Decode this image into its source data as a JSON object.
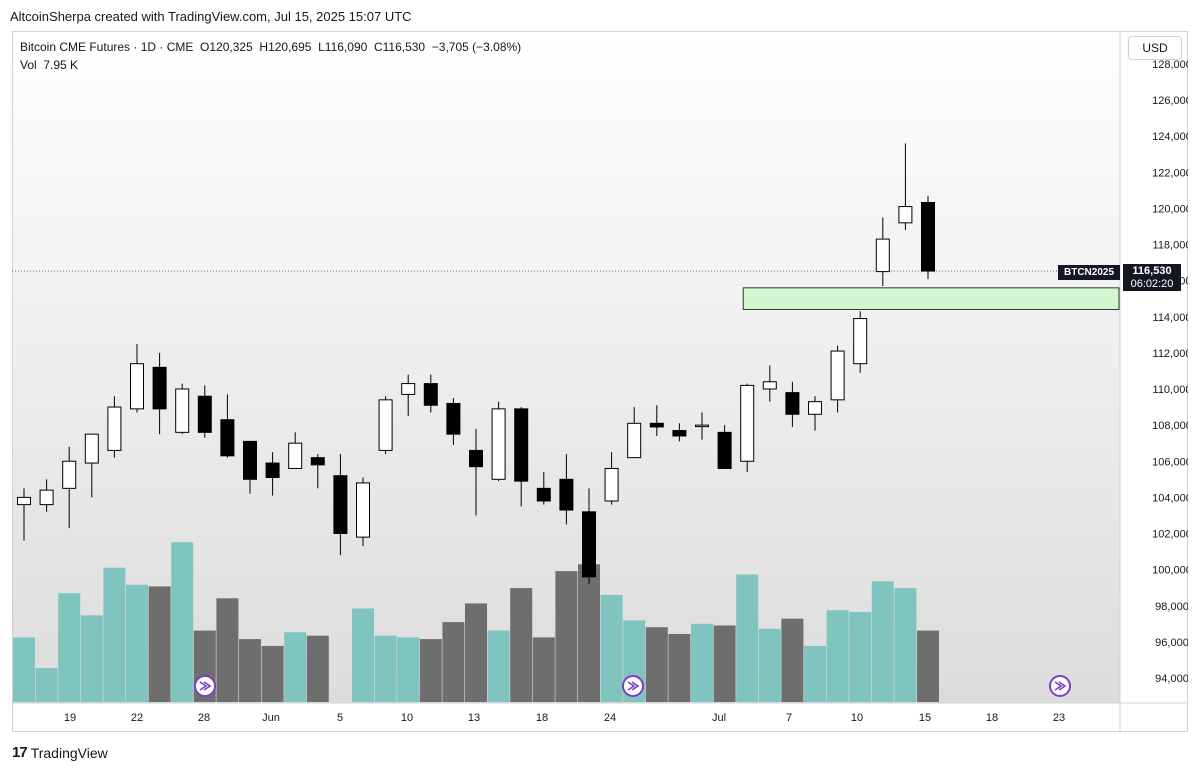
{
  "header": {
    "credit": "AltcoinSherpa created with TradingView.com, Jul 15, 2025 15:07 UTC"
  },
  "legend": {
    "line1": "Bitcoin CME Futures · 1D · CME  O120,325  H120,695  L116,090  C116,530  −3,705 (−3.08%)",
    "line2": "Vol  7.95 K"
  },
  "currency_button": "USD",
  "price_tag": {
    "price": "116,530",
    "countdown": "06:02:20"
  },
  "symbol_tag": "BTCN2025",
  "footer": {
    "brand": "TradingView",
    "logo_text": "17"
  },
  "colors": {
    "volume_up": "#80c4bf",
    "volume_down": "#6e6e6e",
    "zone_fill": "#d3f5d0",
    "zone_border": "#0a0a0a",
    "candle_up": "#ffffff",
    "candle_down": "#000000"
  },
  "chart_data": {
    "type": "candlestick",
    "y_axis": {
      "min": 93000,
      "max": 128000,
      "ticks": [
        "94,000",
        "96,000",
        "98,000",
        "100,000",
        "102,000",
        "104,000",
        "106,000",
        "108,000",
        "110,000",
        "112,000",
        "114,000",
        "116,000",
        "118,000",
        "120,000",
        "122,000",
        "124,000",
        "126,000",
        "128,000"
      ]
    },
    "x_axis": {
      "labels": [
        "19",
        "22",
        "28",
        "Jun",
        "5",
        "10",
        "13",
        "18",
        "24",
        "Jul",
        "7",
        "10",
        "15",
        "18",
        "23"
      ]
    },
    "last_price_line": 116530,
    "zone": {
      "low": 114400,
      "high": 115600
    },
    "candles": [
      {
        "o": 103600,
        "h": 104500,
        "l": 101600,
        "c": 104000,
        "v": 0.38
      },
      {
        "o": 103600,
        "h": 105000,
        "l": 103200,
        "c": 104400,
        "v": 0.2
      },
      {
        "o": 104500,
        "h": 106800,
        "l": 102300,
        "c": 106000,
        "v": 0.64
      },
      {
        "o": 105900,
        "h": 107300,
        "l": 104000,
        "c": 107500,
        "v": 0.51
      },
      {
        "o": 106600,
        "h": 109600,
        "l": 106200,
        "c": 109000,
        "v": 0.79
      },
      {
        "o": 108900,
        "h": 112500,
        "l": 108700,
        "c": 111400,
        "v": 0.69
      },
      {
        "o": 111200,
        "h": 112000,
        "l": 107500,
        "c": 108900,
        "v": 0.68
      },
      {
        "o": 107600,
        "h": 110300,
        "l": 107500,
        "c": 110000,
        "v": 0.94
      },
      {
        "o": 109600,
        "h": 110200,
        "l": 107300,
        "c": 107600,
        "v": 0.42
      },
      {
        "o": 108300,
        "h": 109700,
        "l": 106200,
        "c": 106300,
        "v": 0.61
      },
      {
        "o": 107100,
        "h": 107100,
        "l": 104200,
        "c": 105000,
        "v": 0.37
      },
      {
        "o": 105900,
        "h": 106500,
        "l": 104100,
        "c": 105100,
        "v": 0.33
      },
      {
        "o": 105600,
        "h": 107600,
        "l": 105700,
        "c": 107000,
        "v": 0.41
      },
      {
        "o": 106200,
        "h": 106400,
        "l": 104500,
        "c": 105800,
        "v": 0.39
      },
      {
        "o": 105200,
        "h": 106400,
        "l": 100800,
        "c": 102000,
        "v": 0.0
      },
      {
        "o": 101800,
        "h": 105100,
        "l": 101300,
        "c": 104800,
        "v": 0.55
      },
      {
        "o": 106600,
        "h": 109600,
        "l": 106400,
        "c": 109400,
        "v": 0.39
      },
      {
        "o": 109700,
        "h": 110800,
        "l": 108500,
        "c": 110300,
        "v": 0.38
      },
      {
        "o": 110300,
        "h": 110800,
        "l": 108700,
        "c": 109100,
        "v": 0.37
      },
      {
        "o": 109200,
        "h": 109500,
        "l": 106900,
        "c": 107500,
        "v": 0.47
      },
      {
        "o": 106600,
        "h": 107800,
        "l": 103000,
        "c": 105700,
        "v": 0.58
      },
      {
        "o": 105000,
        "h": 109300,
        "l": 104900,
        "c": 108900,
        "v": 0.42
      },
      {
        "o": 108900,
        "h": 109000,
        "l": 103500,
        "c": 104900,
        "v": 0.67
      },
      {
        "o": 104500,
        "h": 105400,
        "l": 103600,
        "c": 103800,
        "v": 0.38
      },
      {
        "o": 105000,
        "h": 106400,
        "l": 102500,
        "c": 103300,
        "v": 0.77
      },
      {
        "o": 103200,
        "h": 104500,
        "l": 99200,
        "c": 99600,
        "v": 0.81
      },
      {
        "o": 103800,
        "h": 106500,
        "l": 103600,
        "c": 105600,
        "v": 0.63
      },
      {
        "o": 106200,
        "h": 109000,
        "l": 106300,
        "c": 108100,
        "v": 0.48
      },
      {
        "o": 108100,
        "h": 109100,
        "l": 107400,
        "c": 107900,
        "v": 0.44
      },
      {
        "o": 107700,
        "h": 108100,
        "l": 107100,
        "c": 107400,
        "v": 0.4
      },
      {
        "o": 108000,
        "h": 108700,
        "l": 107200,
        "c": 108000,
        "v": 0.46
      },
      {
        "o": 107600,
        "h": 108000,
        "l": 105600,
        "c": 105600,
        "v": 0.45
      },
      {
        "o": 106000,
        "h": 110300,
        "l": 105400,
        "c": 110200,
        "v": 0.75
      },
      {
        "o": 110000,
        "h": 111300,
        "l": 109300,
        "c": 110400,
        "v": 0.43
      },
      {
        "o": 109800,
        "h": 110400,
        "l": 107900,
        "c": 108600,
        "v": 0.49
      },
      {
        "o": 108600,
        "h": 109600,
        "l": 107700,
        "c": 109300,
        "v": 0.33
      },
      {
        "o": 109400,
        "h": 112400,
        "l": 108700,
        "c": 112100,
        "v": 0.54
      },
      {
        "o": 111400,
        "h": 114300,
        "l": 110900,
        "c": 113900,
        "v": 0.53
      },
      {
        "o": 116500,
        "h": 119500,
        "l": 115700,
        "c": 118300,
        "v": 0.71
      },
      {
        "o": 119200,
        "h": 123600,
        "l": 118800,
        "c": 120100,
        "v": 0.67
      },
      {
        "o": 120325,
        "h": 120695,
        "l": 116090,
        "c": 116530,
        "v": 0.42
      }
    ],
    "volume_marker_icons": [
      "play-icon",
      "play-icon",
      "play-icon"
    ]
  }
}
